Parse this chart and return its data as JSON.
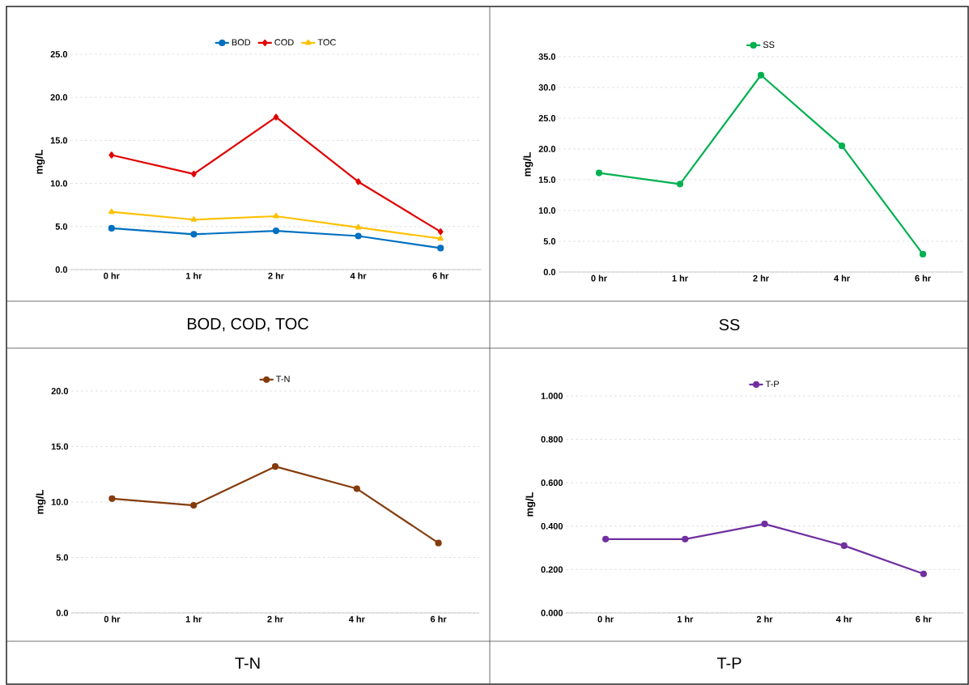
{
  "chart_data": [
    {
      "type": "line",
      "categories": [
        "0 hr",
        "1 hr",
        "2 hr",
        "4 hr",
        "6 hr"
      ],
      "ylabel": "mg/L",
      "ylim": [
        0,
        25
      ],
      "yticks": [
        {
          "value": 0,
          "label": "0.0"
        },
        {
          "value": 5,
          "label": "5.0"
        },
        {
          "value": 10,
          "label": "10.0"
        },
        {
          "value": 15,
          "label": "15.0"
        },
        {
          "value": 20,
          "label": "20.0"
        },
        {
          "value": 25,
          "label": "25.0"
        }
      ],
      "grid": "y",
      "legend": "top",
      "line_style": "solid",
      "annotations": [
        "BOD, COD, TOC"
      ],
      "series": [
        {
          "name": "BOD",
          "color": "#0070c0",
          "marker": "circle",
          "values": [
            4.8,
            4.1,
            4.5,
            3.9,
            2.5
          ]
        },
        {
          "name": "COD",
          "color": "#e00000",
          "marker": "diamond",
          "values": [
            13.3,
            11.1,
            17.7,
            10.2,
            4.4
          ]
        },
        {
          "name": "TOC",
          "color": "#ffc000",
          "marker": "triangle",
          "values": [
            6.7,
            5.8,
            6.2,
            4.9,
            3.6
          ]
        }
      ]
    },
    {
      "type": "line",
      "categories": [
        "0 hr",
        "1 hr",
        "2 hr",
        "4 hr",
        "6 hr"
      ],
      "ylabel": "mg/L",
      "ylim": [
        0,
        35
      ],
      "yticks": [
        {
          "value": 0,
          "label": "0.0"
        },
        {
          "value": 5,
          "label": "5.0"
        },
        {
          "value": 10,
          "label": "10.0"
        },
        {
          "value": 15,
          "label": "15.0"
        },
        {
          "value": 20,
          "label": "20.0"
        },
        {
          "value": 25,
          "label": "25.0"
        },
        {
          "value": 30,
          "label": "30.0"
        },
        {
          "value": 35,
          "label": "35.0"
        }
      ],
      "grid": "y",
      "legend": "top",
      "line_style": "solid",
      "annotations": [
        "SS"
      ],
      "series": [
        {
          "name": "SS",
          "color": "#00b050",
          "marker": "circle",
          "values": [
            16.1,
            14.3,
            32.0,
            20.5,
            2.9
          ]
        }
      ]
    },
    {
      "type": "line",
      "categories": [
        "0 hr",
        "1 hr",
        "2 hr",
        "4 hr",
        "6 hr"
      ],
      "ylabel": "mg/L",
      "ylim": [
        0,
        20
      ],
      "yticks": [
        {
          "value": 0,
          "label": "0.0"
        },
        {
          "value": 5,
          "label": "5.0"
        },
        {
          "value": 10,
          "label": "10.0"
        },
        {
          "value": 15,
          "label": "15.0"
        },
        {
          "value": 20,
          "label": "20.0"
        }
      ],
      "grid": "y",
      "legend": "top",
      "line_style": "solid",
      "annotations": [
        "T-N"
      ],
      "series": [
        {
          "name": "T-N",
          "color": "#843c0c",
          "marker": "circle",
          "values": [
            10.3,
            9.7,
            13.2,
            11.2,
            6.3
          ]
        }
      ]
    },
    {
      "type": "line",
      "categories": [
        "0 hr",
        "1 hr",
        "2 hr",
        "4 hr",
        "6 hr"
      ],
      "ylabel": "mg/L",
      "ylim": [
        0,
        1
      ],
      "yticks": [
        {
          "value": 0,
          "label": "0.000"
        },
        {
          "value": 0.2,
          "label": "0.200"
        },
        {
          "value": 0.4,
          "label": "0.400"
        },
        {
          "value": 0.6,
          "label": "0.600"
        },
        {
          "value": 0.8,
          "label": "0.800"
        },
        {
          "value": 1,
          "label": "1.000"
        }
      ],
      "grid": "y",
      "legend": "top",
      "line_style": "solid",
      "annotations": [
        "T-P"
      ],
      "series": [
        {
          "name": "T-P",
          "color": "#7030a0",
          "marker": "circle",
          "values": [
            0.34,
            0.34,
            0.41,
            0.31,
            0.18
          ]
        }
      ]
    }
  ]
}
